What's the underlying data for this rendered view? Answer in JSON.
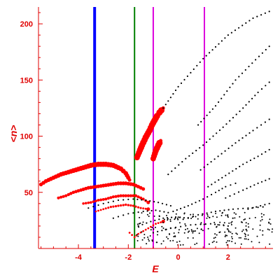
{
  "chart_data": {
    "type": "scatter",
    "title": "",
    "xlabel": "E",
    "ylabel": "<n>",
    "xlim": [
      -5.6,
      3.8
    ],
    "ylim": [
      0,
      215
    ],
    "x_ticks": [
      -4,
      -2,
      0,
      2
    ],
    "y_ticks": [
      50,
      100,
      150,
      200
    ],
    "x_tick_labels": [
      "-4",
      "-2",
      "0",
      "2"
    ],
    "y_tick_labels": [
      "50",
      "100",
      "150",
      "200"
    ],
    "grid": false,
    "colors": {
      "axis": "#e00000",
      "red_series": "#ff0000",
      "black_series": "#000000"
    },
    "vlines": [
      {
        "x": -3.35,
        "color": "#0000ff",
        "width": 4
      },
      {
        "x": -1.75,
        "color": "#008000",
        "width": 2
      },
      {
        "x": -1.0,
        "color": "#dd00dd",
        "width": 2
      },
      {
        "x": 1.05,
        "color": "#dd00dd",
        "width": 2
      }
    ],
    "series": [
      {
        "color": "#ff0000",
        "points": [
          [
            -5.5,
            57
          ],
          [
            -5.3,
            60
          ],
          [
            -5.0,
            63
          ],
          [
            -4.7,
            66
          ],
          [
            -4.4,
            68
          ],
          [
            -4.1,
            70
          ],
          [
            -3.8,
            72
          ],
          [
            -3.5,
            74
          ],
          [
            -3.2,
            75
          ],
          [
            -2.9,
            75
          ],
          [
            -2.6,
            74
          ],
          [
            -2.3,
            71
          ],
          [
            -2.1,
            67
          ],
          [
            -1.95,
            61
          ]
        ]
      },
      {
        "color": "#ff0000",
        "points": [
          [
            -4.8,
            45
          ],
          [
            -4.5,
            47
          ],
          [
            -4.2,
            50
          ],
          [
            -3.9,
            52
          ],
          [
            -3.6,
            54
          ],
          [
            -3.3,
            55
          ],
          [
            -3.0,
            56
          ],
          [
            -2.7,
            57
          ],
          [
            -2.4,
            58
          ],
          [
            -2.1,
            58
          ],
          [
            -1.8,
            57
          ],
          [
            -1.6,
            55
          ],
          [
            -1.4,
            53
          ]
        ]
      },
      {
        "color": "#ff0000",
        "points": [
          [
            -3.8,
            40
          ],
          [
            -3.5,
            41
          ],
          [
            -3.2,
            43
          ],
          [
            -2.9,
            44
          ],
          [
            -2.6,
            46
          ],
          [
            -2.3,
            47
          ],
          [
            -2.0,
            47
          ],
          [
            -1.7,
            47
          ],
          [
            -1.4,
            44
          ],
          [
            -1.2,
            41
          ]
        ]
      },
      {
        "color": "#ff0000",
        "points": [
          [
            -3.3,
            33
          ],
          [
            -3.0,
            35
          ],
          [
            -2.7,
            37
          ],
          [
            -2.4,
            38
          ],
          [
            -2.1,
            39
          ],
          [
            -1.8,
            38
          ],
          [
            -1.5,
            36
          ],
          [
            -1.2,
            35
          ]
        ]
      },
      {
        "color": "#ff0000",
        "points": [
          [
            -1.95,
            14
          ],
          [
            -1.75,
            10
          ],
          [
            -1.6,
            13
          ],
          [
            -1.2,
            18
          ],
          [
            -0.9,
            22
          ],
          [
            -0.6,
            24
          ]
        ]
      },
      {
        "color": "#ff0000",
        "points": [
          [
            -1.65,
            81
          ],
          [
            -1.45,
            92
          ],
          [
            -1.3,
            99
          ],
          [
            -1.15,
            105
          ],
          [
            -1.05,
            110
          ],
          [
            -0.95,
            114
          ],
          [
            -0.85,
            118
          ],
          [
            -0.75,
            121
          ],
          [
            -0.6,
            125
          ]
        ]
      },
      {
        "color": "#ff0000",
        "points": [
          [
            -1.0,
            80
          ],
          [
            -0.9,
            87
          ],
          [
            -0.8,
            92
          ],
          [
            -0.7,
            96
          ]
        ]
      },
      {
        "color": "#000000",
        "points": [
          [
            -0.6,
            125
          ],
          [
            0.0,
            144
          ],
          [
            1.0,
            169
          ],
          [
            2.0,
            190
          ],
          [
            3.0,
            205
          ],
          [
            3.65,
            211
          ]
        ]
      },
      {
        "color": "#000000",
        "points": [
          [
            0.8,
            110
          ],
          [
            1.5,
            127
          ],
          [
            2.3,
            150
          ],
          [
            3.1,
            168
          ],
          [
            3.65,
            180
          ]
        ]
      },
      {
        "color": "#000000",
        "points": [
          [
            -0.4,
            66
          ],
          [
            0.3,
            80
          ],
          [
            1.0,
            92
          ],
          [
            1.8,
            108
          ],
          [
            2.6,
            125
          ],
          [
            3.2,
            139
          ],
          [
            3.65,
            148
          ]
        ]
      },
      {
        "color": "#000000",
        "points": [
          [
            0.9,
            70
          ],
          [
            1.6,
            82
          ],
          [
            2.3,
            94
          ],
          [
            3.0,
            105
          ],
          [
            3.65,
            115
          ]
        ]
      },
      {
        "color": "#000000",
        "points": [
          [
            1.2,
            55
          ],
          [
            1.9,
            65
          ],
          [
            2.6,
            75
          ],
          [
            3.2,
            82
          ],
          [
            3.65,
            88
          ]
        ]
      },
      {
        "color": "#000000",
        "points": [
          [
            1.9,
            45
          ],
          [
            2.6,
            52
          ],
          [
            3.2,
            58
          ],
          [
            3.65,
            62
          ]
        ]
      },
      {
        "color": "#000000",
        "points": [
          [
            2.8,
            35
          ],
          [
            3.3,
            38
          ],
          [
            3.65,
            40
          ]
        ]
      },
      {
        "color": "#000000",
        "points": [
          [
            -3.6,
            36
          ],
          [
            -3.0,
            40
          ],
          [
            -2.4,
            43
          ],
          [
            -1.8,
            44
          ],
          [
            -1.3,
            43
          ],
          [
            -0.8,
            41
          ],
          [
            -0.3,
            38
          ]
        ]
      },
      {
        "color": "#000000",
        "points": [
          [
            -2.6,
            27
          ],
          [
            -2.0,
            31
          ],
          [
            -1.4,
            33
          ],
          [
            -0.9,
            34
          ],
          [
            -0.4,
            32
          ]
        ]
      },
      {
        "color": "#000000",
        "points": [
          [
            -1.6,
            20
          ],
          [
            -1.1,
            24
          ],
          [
            -0.6,
            27
          ],
          [
            -0.1,
            28
          ],
          [
            0.4,
            27
          ]
        ]
      },
      {
        "color": "#000000",
        "points": [
          [
            -1.0,
            14
          ],
          [
            -0.3,
            18
          ],
          [
            0.5,
            21
          ],
          [
            1.3,
            22
          ],
          [
            2.0,
            20
          ]
        ]
      },
      {
        "color": "#000000",
        "points": [
          [
            -0.2,
            33
          ],
          [
            0.4,
            38
          ],
          [
            1.0,
            44
          ],
          [
            1.5,
            50
          ],
          [
            1.9,
            55
          ],
          [
            2.3,
            58
          ]
        ]
      },
      {
        "color": "#000000",
        "points": [
          [
            0.2,
            26
          ],
          [
            0.8,
            30
          ],
          [
            1.5,
            33
          ],
          [
            2.2,
            35
          ],
          [
            2.8,
            36
          ],
          [
            3.4,
            37
          ]
        ]
      }
    ],
    "noise_region": {
      "color": "#000000",
      "x_range": [
        -1.7,
        3.8
      ],
      "y_range": [
        3,
        32
      ],
      "count": 220
    }
  }
}
